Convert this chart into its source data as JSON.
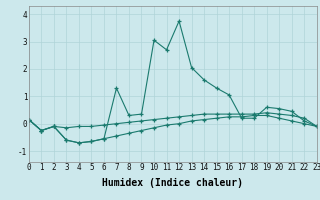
{
  "xlabel": "Humidex (Indice chaleur)",
  "x": [
    0,
    1,
    2,
    3,
    4,
    5,
    6,
    7,
    8,
    9,
    10,
    11,
    12,
    13,
    14,
    15,
    16,
    17,
    18,
    19,
    20,
    21,
    22,
    23
  ],
  "line1": [
    0.15,
    -0.25,
    -0.1,
    -0.6,
    -0.7,
    -0.65,
    -0.55,
    1.3,
    0.3,
    0.35,
    3.05,
    2.7,
    3.75,
    2.05,
    1.6,
    1.3,
    1.05,
    0.2,
    0.2,
    0.6,
    0.55,
    0.45,
    0.1,
    -0.1
  ],
  "line2": [
    0.15,
    -0.25,
    -0.1,
    -0.15,
    -0.1,
    -0.1,
    -0.05,
    0.0,
    0.05,
    0.1,
    0.15,
    0.2,
    0.25,
    0.3,
    0.35,
    0.35,
    0.35,
    0.35,
    0.35,
    0.4,
    0.35,
    0.3,
    0.2,
    -0.1
  ],
  "line3": [
    0.15,
    -0.25,
    -0.1,
    -0.6,
    -0.7,
    -0.65,
    -0.55,
    -0.45,
    -0.35,
    -0.25,
    -0.15,
    -0.05,
    0.0,
    0.1,
    0.15,
    0.2,
    0.25,
    0.25,
    0.3,
    0.3,
    0.2,
    0.1,
    0.0,
    -0.1
  ],
  "line_color": "#1a7a6e",
  "bg_color": "#cce8ec",
  "grid_color": "#b0d4d8",
  "ylim": [
    -1.4,
    4.3
  ],
  "xlim": [
    0,
    23
  ],
  "yticks": [
    -1,
    0,
    1,
    2,
    3,
    4
  ],
  "xticks": [
    0,
    1,
    2,
    3,
    4,
    5,
    6,
    7,
    8,
    9,
    10,
    11,
    12,
    13,
    14,
    15,
    16,
    17,
    18,
    19,
    20,
    21,
    22,
    23
  ],
  "tick_fontsize": 5.5,
  "label_fontsize": 7.0
}
